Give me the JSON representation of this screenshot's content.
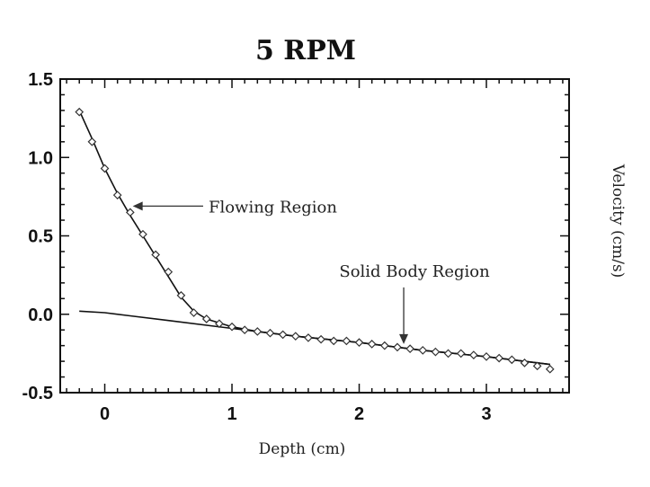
{
  "chart_data": {
    "type": "scatter",
    "title": "5 RPM",
    "xlabel": "Depth (cm)",
    "ylabel": "Velocity (cm/s)",
    "xlim": [
      -0.35,
      3.65
    ],
    "ylim": [
      -0.5,
      1.5
    ],
    "xticks": [
      0,
      1,
      2,
      3
    ],
    "yticks": [
      1.5,
      1.0,
      0.5,
      0.0,
      -0.5
    ],
    "xtick_labels": [
      "0",
      "1",
      "2",
      "3"
    ],
    "ytick_labels": [
      "1.5",
      "1.0",
      "0.5",
      "0.0",
      "-0.5"
    ],
    "grid": false,
    "series": [
      {
        "kind": "markers",
        "marker": "diamond",
        "x": [
          -0.2,
          -0.1,
          0.0,
          0.1,
          0.2,
          0.3,
          0.4,
          0.5,
          0.6,
          0.7,
          0.8,
          0.9,
          1.0,
          1.1,
          1.2,
          1.3,
          1.4,
          1.5,
          1.6,
          1.7,
          1.8,
          1.9,
          2.0,
          2.1,
          2.2,
          2.3,
          2.4,
          2.5,
          2.6,
          2.7,
          2.8,
          2.9,
          3.0,
          3.1,
          3.2,
          3.3,
          3.4,
          3.5
        ],
        "y": [
          1.29,
          1.1,
          0.93,
          0.76,
          0.65,
          0.51,
          0.38,
          0.27,
          0.12,
          0.01,
          -0.03,
          -0.06,
          -0.08,
          -0.1,
          -0.11,
          -0.12,
          -0.13,
          -0.14,
          -0.15,
          -0.16,
          -0.17,
          -0.17,
          -0.18,
          -0.19,
          -0.2,
          -0.21,
          -0.22,
          -0.23,
          -0.24,
          -0.25,
          -0.25,
          -0.26,
          -0.27,
          -0.28,
          -0.29,
          -0.31,
          -0.33,
          -0.35
        ]
      },
      {
        "kind": "line",
        "x": [
          -0.2,
          -0.1,
          0.0,
          0.1,
          0.2,
          0.3,
          0.4,
          0.5,
          0.6,
          0.7,
          0.8,
          1.0,
          1.2,
          1.5,
          2.0,
          2.5,
          3.0,
          3.5
        ],
        "y": [
          1.3,
          1.12,
          0.93,
          0.77,
          0.63,
          0.5,
          0.37,
          0.24,
          0.11,
          0.02,
          -0.03,
          -0.08,
          -0.11,
          -0.14,
          -0.18,
          -0.23,
          -0.27,
          -0.32
        ]
      },
      {
        "kind": "line",
        "x": [
          -0.2,
          0.0,
          0.2,
          0.5,
          1.0,
          1.5,
          2.0,
          2.5,
          3.0,
          3.5
        ],
        "y": [
          0.02,
          0.01,
          -0.01,
          -0.04,
          -0.09,
          -0.14,
          -0.18,
          -0.23,
          -0.27,
          -0.32
        ]
      }
    ],
    "annotations": [
      {
        "text": "Flowing Region",
        "point_to": [
          0.22,
          0.69
        ],
        "text_at": [
          0.83,
          0.69
        ],
        "arrow": "left"
      },
      {
        "text": "Solid Body Region",
        "point_to": [
          2.35,
          -0.19
        ],
        "text_at": [
          2.35,
          0.24
        ],
        "arrow": "down"
      }
    ],
    "colors": {
      "line": "#111111",
      "marker": "#333333",
      "axis": "#111111"
    }
  }
}
